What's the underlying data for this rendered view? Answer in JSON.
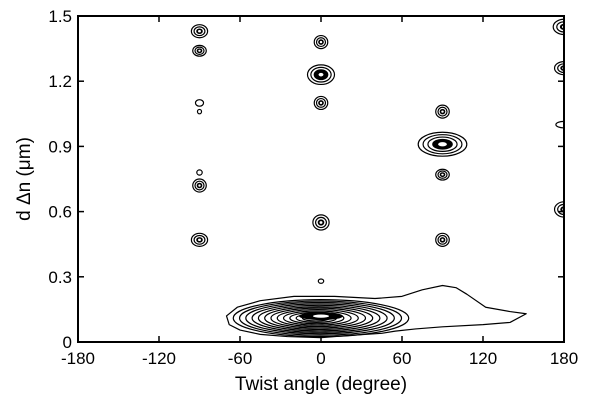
{
  "chart_data": {
    "type": "contour",
    "xlabel": "Twist angle  (degree)",
    "ylabel": "d Δn  (μm)",
    "xlim": [
      -180,
      180
    ],
    "ylim": [
      0,
      1.5
    ],
    "xticks": [
      -180,
      -120,
      -60,
      0,
      60,
      120,
      180
    ],
    "xtick_labels": [
      "-180",
      "-120",
      "-60",
      "0",
      "60",
      "120",
      "180"
    ],
    "yticks": [
      0,
      0.3,
      0.6,
      0.9,
      1.2,
      1.5
    ],
    "ytick_labels": [
      "0",
      "0.3",
      "0.6",
      "0.9",
      "1.2",
      "1.5"
    ],
    "grid": false,
    "line_color": "#000000",
    "features": [
      {
        "x": -90,
        "y": 1.43,
        "rx": 6,
        "ry": 0.03,
        "levels": 3
      },
      {
        "x": -90,
        "y": 1.34,
        "rx": 5,
        "ry": 0.025,
        "levels": 3
      },
      {
        "x": -90,
        "y": 1.1,
        "rx": 3,
        "ry": 0.015,
        "levels": 1
      },
      {
        "x": -90,
        "y": 1.06,
        "rx": 1.5,
        "ry": 0.01,
        "levels": 1
      },
      {
        "x": -90,
        "y": 0.78,
        "rx": 2,
        "ry": 0.012,
        "levels": 1
      },
      {
        "x": -90,
        "y": 0.72,
        "rx": 5,
        "ry": 0.03,
        "levels": 3
      },
      {
        "x": -90,
        "y": 0.47,
        "rx": 6,
        "ry": 0.03,
        "levels": 3
      },
      {
        "x": 0,
        "y": 1.38,
        "rx": 5,
        "ry": 0.03,
        "levels": 3
      },
      {
        "x": 0,
        "y": 1.23,
        "rx": 10,
        "ry": 0.045,
        "levels": 4
      },
      {
        "x": 0,
        "y": 1.1,
        "rx": 5,
        "ry": 0.03,
        "levels": 3
      },
      {
        "x": 0,
        "y": 0.55,
        "rx": 6,
        "ry": 0.035,
        "levels": 3
      },
      {
        "x": 0,
        "y": 0.28,
        "rx": 2,
        "ry": 0.01,
        "levels": 1
      },
      {
        "x": 90,
        "y": 1.06,
        "rx": 5,
        "ry": 0.03,
        "levels": 3
      },
      {
        "x": 90,
        "y": 0.91,
        "rx": 18,
        "ry": 0.055,
        "levels": 5
      },
      {
        "x": 90,
        "y": 0.77,
        "rx": 5,
        "ry": 0.025,
        "levels": 3
      },
      {
        "x": 90,
        "y": 0.47,
        "rx": 5,
        "ry": 0.03,
        "levels": 3
      },
      {
        "x": 180,
        "y": 1.45,
        "rx": 8,
        "ry": 0.035,
        "levels": 3
      },
      {
        "x": 180,
        "y": 1.26,
        "rx": 7,
        "ry": 0.03,
        "levels": 3
      },
      {
        "x": 180,
        "y": 1.0,
        "rx": 6,
        "ry": 0.015,
        "levels": 1
      },
      {
        "x": 180,
        "y": 0.61,
        "rx": 7,
        "ry": 0.035,
        "levels": 3
      }
    ],
    "base_cluster": {
      "x": 0,
      "y": 0.11,
      "rx": 65,
      "ry": 0.085,
      "levels": 12
    },
    "outer_tail": [
      [
        -70,
        0.12
      ],
      [
        -62,
        0.16
      ],
      [
        -45,
        0.19
      ],
      [
        -20,
        0.21
      ],
      [
        10,
        0.21
      ],
      [
        40,
        0.2
      ],
      [
        60,
        0.21
      ],
      [
        75,
        0.24
      ],
      [
        90,
        0.26
      ],
      [
        100,
        0.25
      ],
      [
        108,
        0.22
      ],
      [
        122,
        0.16
      ],
      [
        140,
        0.14
      ],
      [
        152,
        0.13
      ],
      [
        140,
        0.09
      ],
      [
        120,
        0.08
      ],
      [
        90,
        0.07
      ],
      [
        70,
        0.06
      ],
      [
        55,
        0.05
      ],
      [
        45,
        0.04
      ],
      [
        20,
        0.03
      ],
      [
        0,
        0.02
      ],
      [
        -25,
        0.025
      ],
      [
        -45,
        0.035
      ],
      [
        -60,
        0.055
      ],
      [
        -68,
        0.08
      ]
    ]
  }
}
